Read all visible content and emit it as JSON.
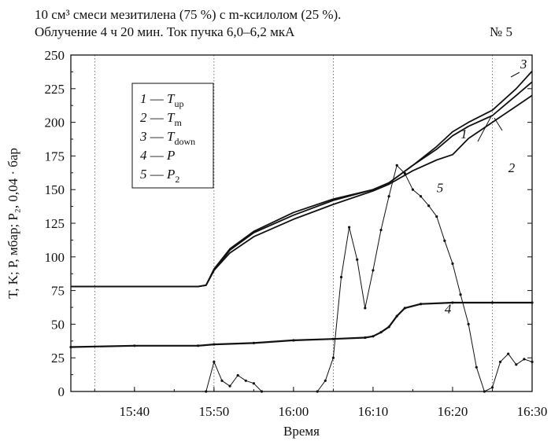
{
  "header": {
    "line1": "10 см³  смеси мезитилена (75 %) с m-ксилолом (25 %).",
    "line2": "Облучение 4 ч 20 мин. Ток пучка 6,0–6,2 мкА",
    "figure_number": "№ 5"
  },
  "chart_data": {
    "type": "line",
    "xlabel": "Время",
    "ylabel": "T, K; P, мбар; P₂, 0,04 · бар",
    "xlim": [
      "15:32",
      "16:30"
    ],
    "ylim": [
      0,
      250
    ],
    "x_ticks": [
      "15:40",
      "15:50",
      "16:00",
      "16:10",
      "16:20",
      "16:30"
    ],
    "y_ticks": [
      0,
      25,
      50,
      75,
      100,
      125,
      150,
      175,
      200,
      225,
      250
    ],
    "grid": "vertical dotted at 15:35, 15:50, 16:05, 16:25",
    "legend_placement": "upper-left",
    "legend": [
      "1 — T_up",
      "2 — T_m",
      "3 — T_down",
      "4 — P",
      "5 — P_2"
    ],
    "series": [
      {
        "name": "T_up",
        "label": "1",
        "x": [
          "15:32",
          "15:48",
          "15:49",
          "15:50",
          "15:52",
          "15:55",
          "16:00",
          "16:05",
          "16:10",
          "16:12",
          "16:15",
          "16:18",
          "16:20",
          "16:22",
          "16:25",
          "16:28",
          "16:30"
        ],
        "values": [
          78,
          78,
          79,
          90,
          103,
          115,
          128,
          139,
          149,
          154,
          164,
          172,
          176,
          188,
          200,
          212,
          220
        ]
      },
      {
        "name": "T_m",
        "label": "2",
        "x": [
          "15:32",
          "15:48",
          "15:49",
          "15:50",
          "15:52",
          "15:55",
          "16:00",
          "16:05",
          "16:10",
          "16:12",
          "16:15",
          "16:18",
          "16:20",
          "16:22",
          "16:25",
          "16:28",
          "16:30"
        ],
        "values": [
          78,
          78,
          79,
          90,
          105,
          118,
          131,
          142,
          150,
          155,
          168,
          180,
          190,
          197,
          205,
          220,
          230
        ]
      },
      {
        "name": "T_down",
        "label": "3",
        "x": [
          "15:32",
          "15:48",
          "15:49",
          "15:50",
          "15:52",
          "15:55",
          "16:00",
          "16:05",
          "16:10",
          "16:12",
          "16:15",
          "16:18",
          "16:20",
          "16:22",
          "16:25",
          "16:28",
          "16:30"
        ],
        "values": [
          78,
          78,
          79,
          91,
          106,
          119,
          133,
          143,
          150,
          155,
          168,
          182,
          193,
          200,
          209,
          225,
          238
        ]
      },
      {
        "name": "P",
        "label": "4",
        "x": [
          "15:32",
          "15:40",
          "15:48",
          "15:50",
          "15:55",
          "16:00",
          "16:05",
          "16:09",
          "16:10",
          "16:11",
          "16:12",
          "16:13",
          "16:14",
          "16:16",
          "16:20",
          "16:25",
          "16:30"
        ],
        "values": [
          33,
          34,
          34,
          35,
          36,
          38,
          39,
          40,
          41,
          44,
          48,
          56,
          62,
          65,
          66,
          66,
          66
        ]
      },
      {
        "name": "P_2",
        "label": "5",
        "x": [
          "15:49",
          "15:50",
          "15:51",
          "15:52",
          "15:53",
          "15:54",
          "15:55",
          "15:56",
          "16:03",
          "16:04",
          "16:05",
          "16:06",
          "16:07",
          "16:08",
          "16:09",
          "16:10",
          "16:11",
          "16:12",
          "16:13",
          "16:14",
          "16:15",
          "16:16",
          "16:17",
          "16:18",
          "16:19",
          "16:20",
          "16:21",
          "16:22",
          "16:23",
          "16:24",
          "16:25",
          "16:26",
          "16:27",
          "16:28",
          "16:29",
          "16:30"
        ],
        "values": [
          0,
          22,
          8,
          4,
          12,
          8,
          6,
          0,
          0,
          8,
          25,
          85,
          122,
          98,
          62,
          90,
          120,
          145,
          168,
          162,
          150,
          145,
          138,
          130,
          112,
          95,
          72,
          50,
          18,
          0,
          3,
          22,
          28,
          20,
          24,
          22
        ]
      }
    ],
    "curve_labels": [
      "1",
      "2",
      "3",
      "4",
      "5"
    ]
  }
}
